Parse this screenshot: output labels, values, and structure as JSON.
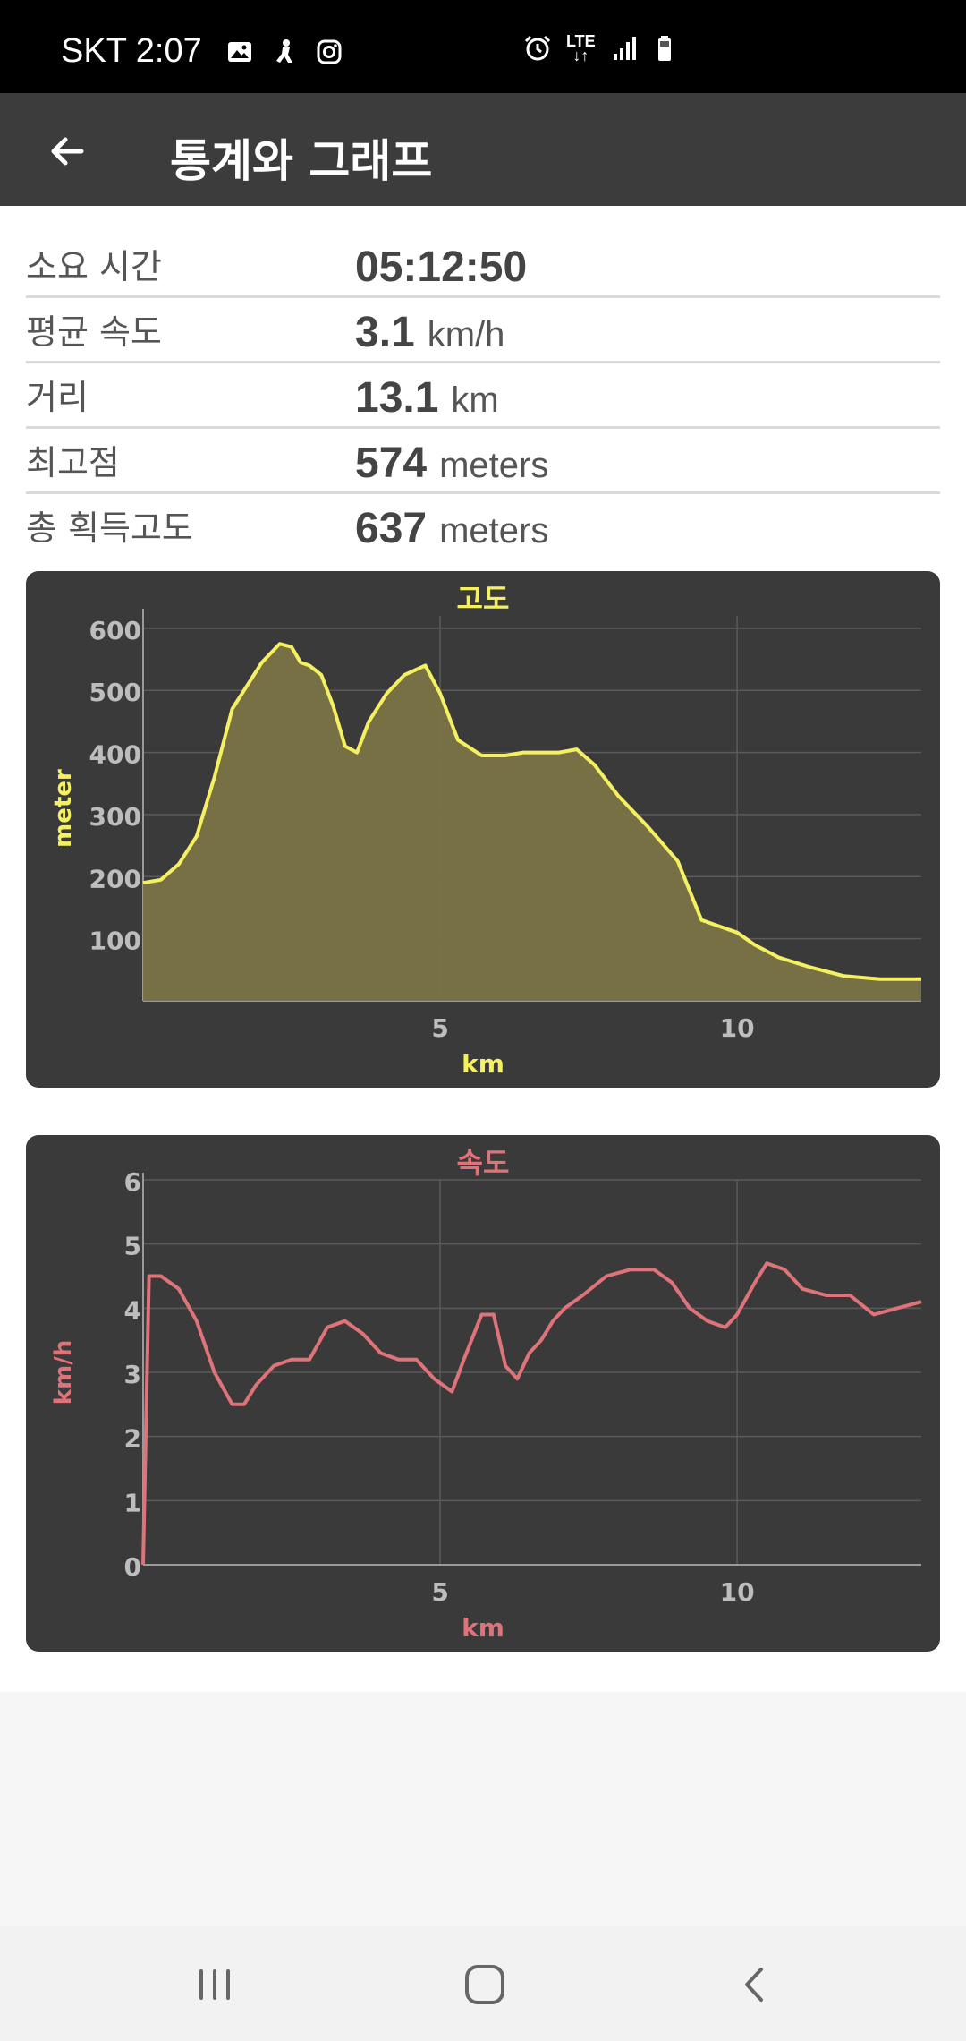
{
  "status_bar": {
    "carrier_time": "SKT 2:07",
    "network": "LTE",
    "icons_left": [
      "image-icon",
      "figure-icon",
      "instagram-icon"
    ],
    "icons_right": [
      "alarm-icon",
      "lte-icon",
      "signal-icon",
      "battery-icon"
    ]
  },
  "app_bar": {
    "back_icon": "back-arrow-icon",
    "title": "통계와 그래프"
  },
  "stats": [
    {
      "label": "소요 시간",
      "value": "05:12:50",
      "unit": ""
    },
    {
      "label": "평균 속도",
      "value": "3.1",
      "unit": "km/h"
    },
    {
      "label": "거리",
      "value": "13.1",
      "unit": "km"
    },
    {
      "label": "최고점",
      "value": "574",
      "unit": "meters"
    },
    {
      "label": "총 획득고도",
      "value": "637",
      "unit": "meters"
    }
  ],
  "chart_data": [
    {
      "type": "area",
      "title": "고도",
      "xlabel": "km",
      "ylabel": "meter",
      "color": "#f5f060",
      "fill": "#7a7346",
      "xlim": [
        0,
        13.1
      ],
      "ylim": [
        0,
        620
      ],
      "xticks": [
        5,
        10
      ],
      "yticks": [
        100,
        200,
        300,
        400,
        500,
        600
      ],
      "grid": true,
      "x": [
        0,
        0.3,
        0.6,
        0.9,
        1.2,
        1.5,
        1.7,
        2.0,
        2.3,
        2.5,
        2.65,
        2.8,
        3.0,
        3.2,
        3.4,
        3.6,
        3.8,
        4.1,
        4.4,
        4.75,
        5.0,
        5.3,
        5.7,
        6.1,
        6.4,
        6.7,
        7.0,
        7.3,
        7.6,
        8.0,
        8.5,
        9.0,
        9.4,
        9.7,
        10.0,
        10.3,
        10.7,
        11.2,
        11.8,
        12.4,
        13.1
      ],
      "y": [
        190,
        195,
        220,
        265,
        360,
        470,
        500,
        545,
        575,
        570,
        545,
        540,
        525,
        475,
        410,
        400,
        450,
        495,
        525,
        540,
        495,
        420,
        395,
        395,
        400,
        400,
        400,
        405,
        380,
        330,
        280,
        225,
        130,
        120,
        110,
        90,
        70,
        55,
        40,
        35,
        35
      ]
    },
    {
      "type": "line",
      "title": "속도",
      "xlabel": "km",
      "ylabel": "km/h",
      "color": "#e0737a",
      "xlim": [
        0,
        13.1
      ],
      "ylim": [
        0,
        6
      ],
      "xticks": [
        5,
        10
      ],
      "yticks": [
        0,
        1,
        2,
        3,
        4,
        5,
        6
      ],
      "grid": true,
      "x": [
        0,
        0.1,
        0.3,
        0.6,
        0.9,
        1.2,
        1.5,
        1.7,
        1.9,
        2.2,
        2.5,
        2.8,
        3.1,
        3.4,
        3.7,
        4.0,
        4.3,
        4.6,
        4.9,
        5.2,
        5.4,
        5.7,
        5.9,
        6.1,
        6.3,
        6.5,
        6.7,
        6.9,
        7.1,
        7.4,
        7.8,
        8.2,
        8.6,
        8.9,
        9.2,
        9.5,
        9.8,
        10.0,
        10.3,
        10.5,
        10.8,
        11.1,
        11.5,
        11.9,
        12.3,
        12.7,
        13.1
      ],
      "y": [
        0,
        4.5,
        4.5,
        4.3,
        3.8,
        3.0,
        2.5,
        2.5,
        2.8,
        3.1,
        3.2,
        3.2,
        3.7,
        3.8,
        3.6,
        3.3,
        3.2,
        3.2,
        2.9,
        2.7,
        3.2,
        3.9,
        3.9,
        3.1,
        2.9,
        3.3,
        3.5,
        3.8,
        4.0,
        4.2,
        4.5,
        4.6,
        4.6,
        4.4,
        4.0,
        3.8,
        3.7,
        3.9,
        4.4,
        4.7,
        4.6,
        4.3,
        4.2,
        4.2,
        3.9,
        4.0,
        4.1
      ]
    }
  ],
  "nav_bar": {
    "buttons": [
      "recents-icon",
      "home-icon",
      "back-icon"
    ]
  }
}
